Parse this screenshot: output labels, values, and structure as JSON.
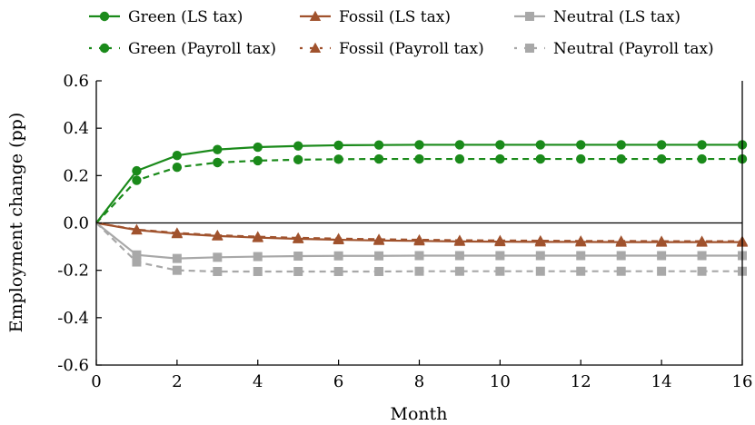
{
  "chart_data": {
    "type": "line",
    "xlabel": "Month",
    "ylabel": "Employment change (pp)",
    "xlim": [
      0,
      16
    ],
    "ylim": [
      -0.6,
      0.6
    ],
    "xticks": [
      0,
      2,
      4,
      6,
      8,
      10,
      12,
      14,
      16
    ],
    "xtick_labels": [
      "0",
      "2",
      "4",
      "6",
      "8",
      "10",
      "12",
      "14",
      "16"
    ],
    "yticks": [
      -0.6,
      -0.4,
      -0.2,
      0.0,
      0.2,
      0.4,
      0.6
    ],
    "ytick_labels": [
      "-0.6",
      "-0.4",
      "-0.2",
      "0.0",
      "0.2",
      "0.4",
      "0.6"
    ],
    "zero_line": true,
    "grid": false,
    "legend_position": "top",
    "x": [
      0,
      1,
      2,
      3,
      4,
      5,
      6,
      7,
      8,
      9,
      10,
      11,
      12,
      13,
      14,
      15,
      16
    ],
    "series": [
      {
        "name": "Green (LS tax)",
        "color": "#1a8a1a",
        "marker": "circle",
        "dash": "solid",
        "values": [
          0,
          0.22,
          0.285,
          0.31,
          0.32,
          0.325,
          0.328,
          0.329,
          0.33,
          0.33,
          0.33,
          0.33,
          0.33,
          0.33,
          0.33,
          0.33,
          0.33
        ]
      },
      {
        "name": "Fossil (LS tax)",
        "color": "#a0522d",
        "marker": "triangle",
        "dash": "solid",
        "values": [
          0,
          -0.03,
          -0.045,
          -0.055,
          -0.062,
          -0.067,
          -0.071,
          -0.074,
          -0.076,
          -0.078,
          -0.079,
          -0.08,
          -0.08,
          -0.081,
          -0.081,
          -0.081,
          -0.081
        ]
      },
      {
        "name": "Neutral (LS tax)",
        "color": "#a8a8a8",
        "marker": "square",
        "dash": "solid",
        "values": [
          0,
          -0.135,
          -0.15,
          -0.145,
          -0.142,
          -0.14,
          -0.139,
          -0.139,
          -0.138,
          -0.138,
          -0.138,
          -0.138,
          -0.138,
          -0.138,
          -0.138,
          -0.138,
          -0.138
        ]
      },
      {
        "name": "Green (Payroll tax)",
        "color": "#1a8a1a",
        "marker": "circle",
        "dash": "dashed",
        "values": [
          0,
          0.18,
          0.235,
          0.255,
          0.263,
          0.267,
          0.269,
          0.27,
          0.27,
          0.27,
          0.27,
          0.27,
          0.27,
          0.27,
          0.27,
          0.27,
          0.27
        ]
      },
      {
        "name": "Fossil (Payroll tax)",
        "color": "#a0522d",
        "marker": "triangle",
        "dash": "dashed",
        "values": [
          0,
          -0.028,
          -0.042,
          -0.052,
          -0.058,
          -0.063,
          -0.066,
          -0.069,
          -0.071,
          -0.073,
          -0.074,
          -0.075,
          -0.076,
          -0.076,
          -0.077,
          -0.077,
          -0.077
        ]
      },
      {
        "name": "Neutral (Payroll tax)",
        "color": "#a8a8a8",
        "marker": "square",
        "dash": "dashed",
        "values": [
          0,
          -0.165,
          -0.2,
          -0.205,
          -0.205,
          -0.205,
          -0.205,
          -0.205,
          -0.204,
          -0.204,
          -0.204,
          -0.204,
          -0.204,
          -0.204,
          -0.204,
          -0.204,
          -0.204
        ]
      }
    ]
  }
}
